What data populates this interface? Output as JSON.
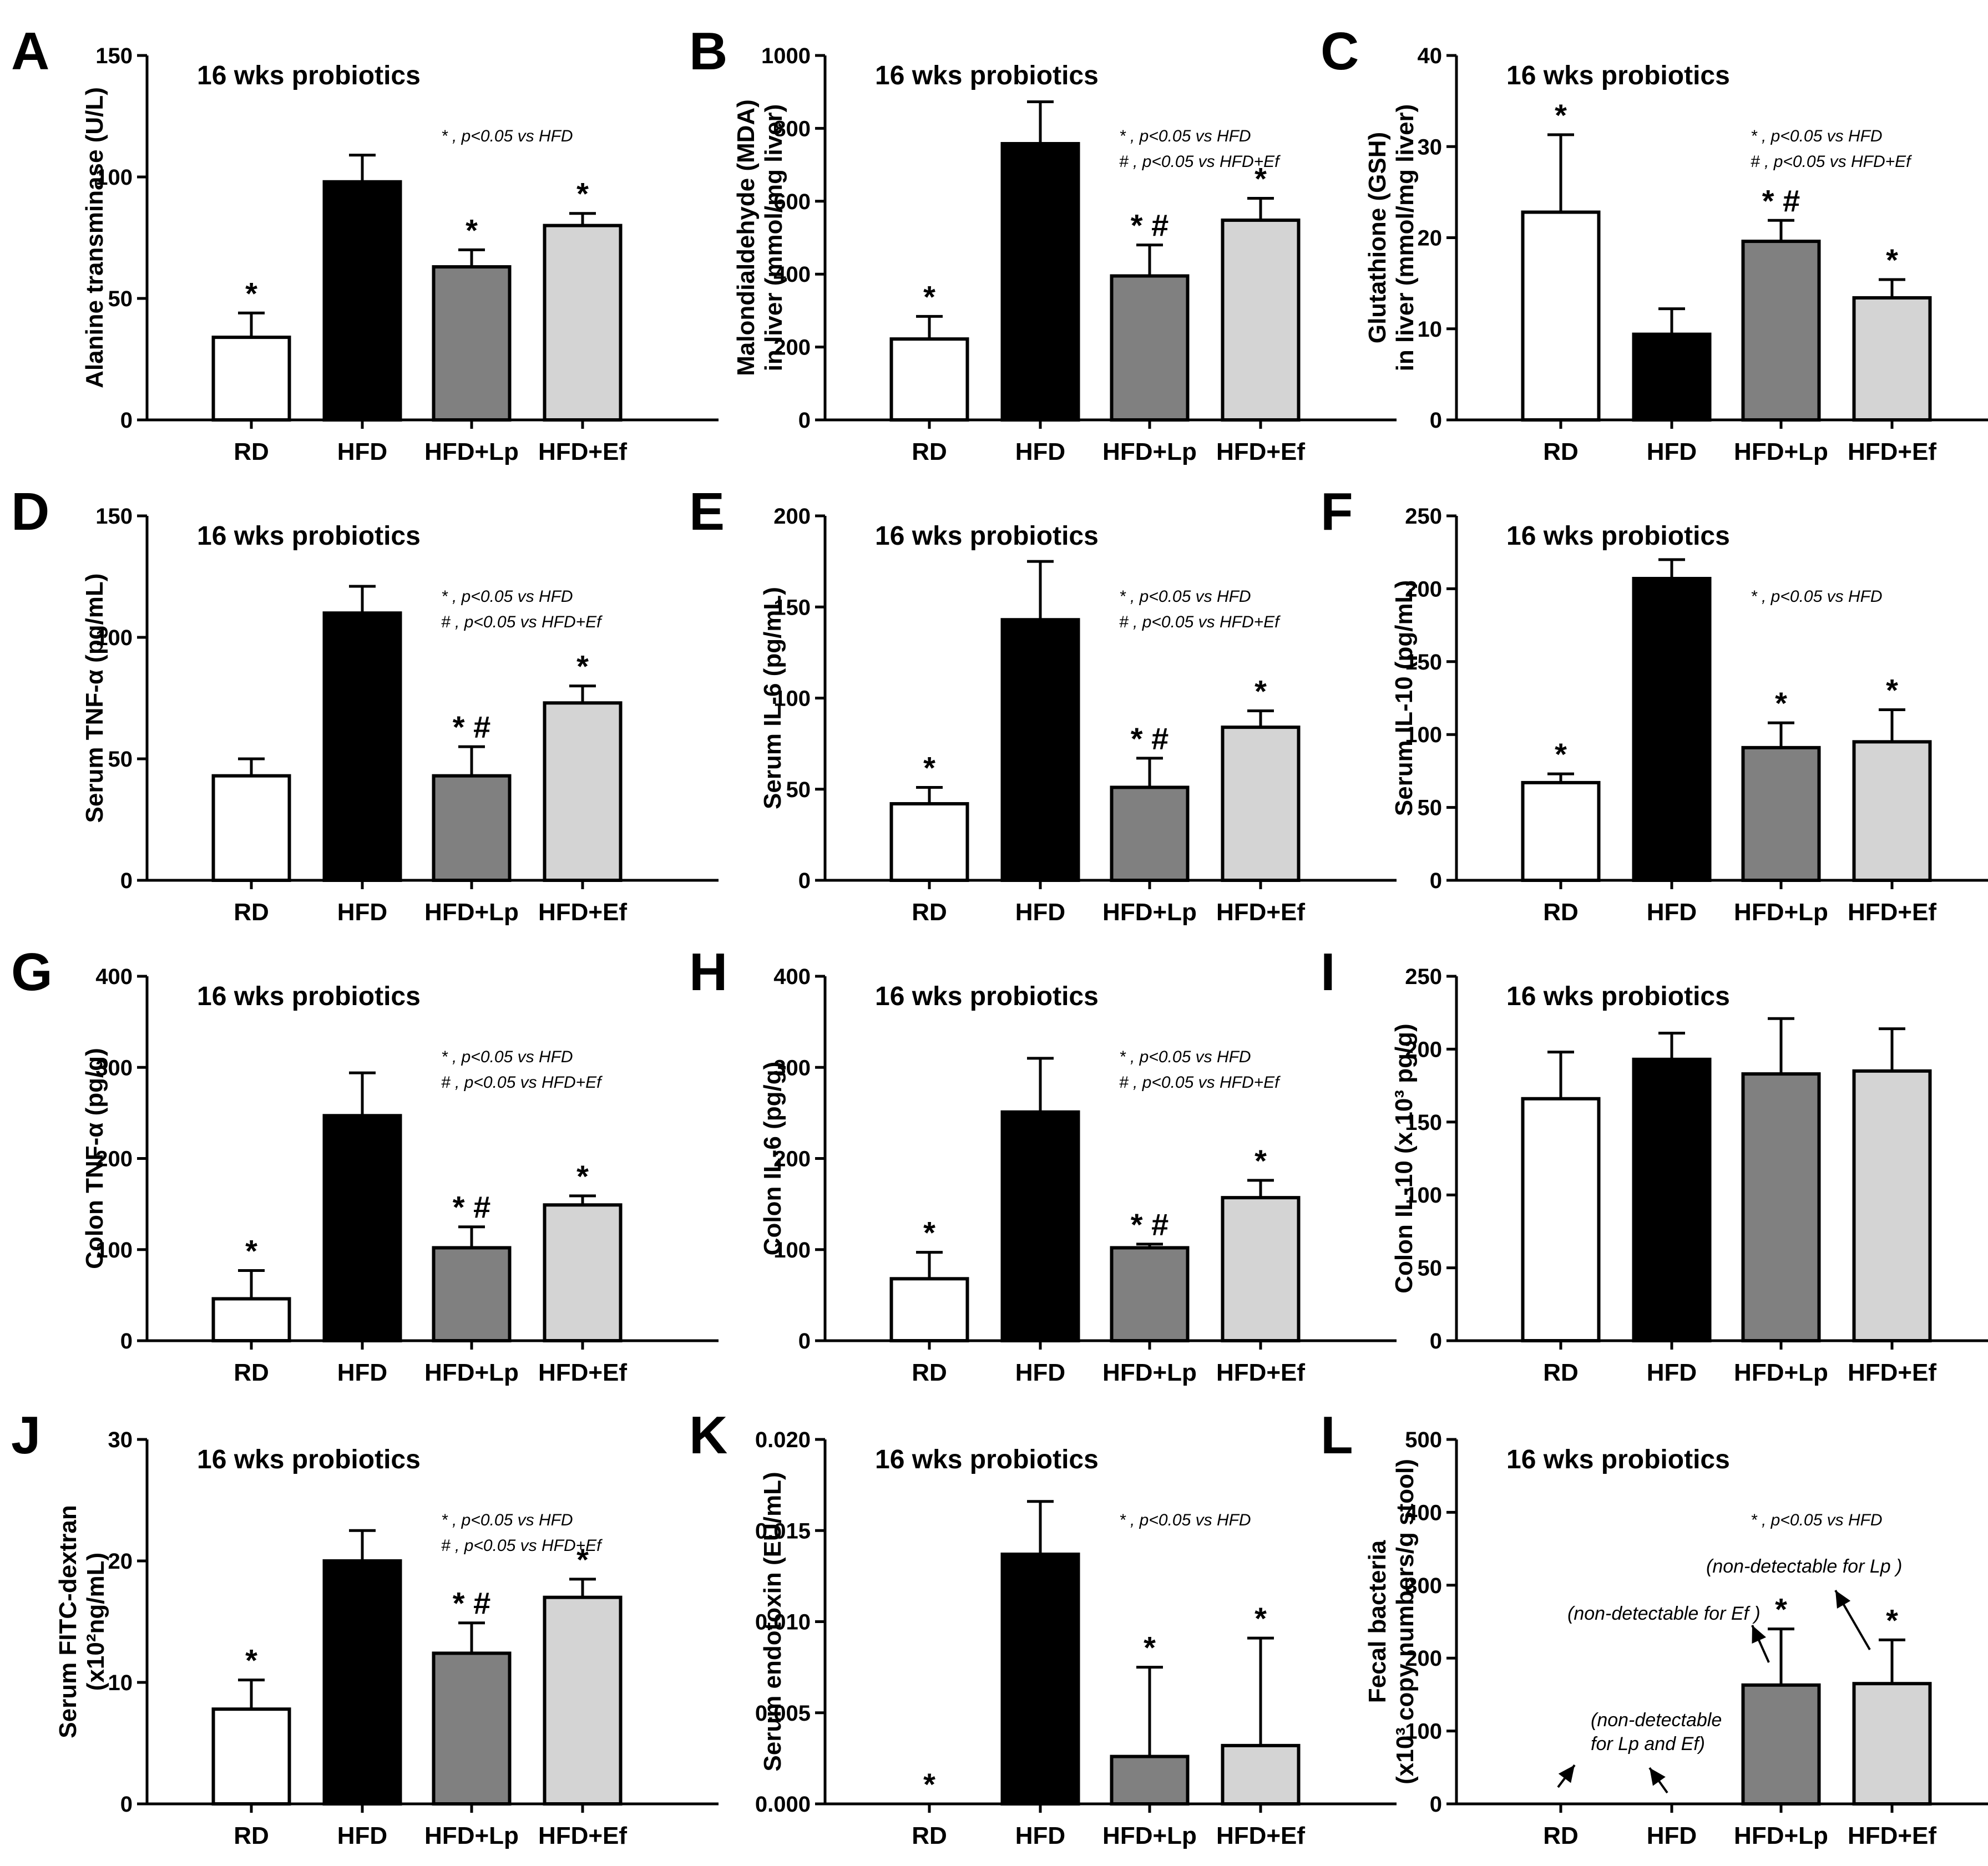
{
  "figure": {
    "description_title": "16 wks probiotics figure panels A-L"
  },
  "chart_data": [
    {
      "panel": "A",
      "type": "bar",
      "title": "16 wks probiotics",
      "ylabel_lines": [
        "Alanine transminase (U/L)"
      ],
      "categories": [
        "RD",
        "HFD",
        "HFD+Lp",
        "HFD+Ef"
      ],
      "values": [
        34,
        98,
        63,
        80
      ],
      "errors": [
        10,
        11,
        7,
        5
      ],
      "annotations": [
        "*",
        "",
        "*",
        "*"
      ],
      "ylim": [
        0,
        150
      ],
      "ticks": [
        0,
        50,
        100,
        150
      ],
      "tick_labels": [
        "0",
        "50",
        "100",
        "150"
      ],
      "legend": [
        "* , p<0.05 vs HFD"
      ]
    },
    {
      "panel": "B",
      "type": "bar",
      "title": "16 wks probiotics",
      "ylabel_lines": [
        "Malondialdehyde (MDA)",
        "in liver (mmol/mg liver)"
      ],
      "categories": [
        "RD",
        "HFD",
        "HFD+Lp",
        "HFD+Ef"
      ],
      "values": [
        222,
        758,
        395,
        548
      ],
      "errors": [
        62,
        115,
        85,
        60
      ],
      "annotations": [
        "*",
        "",
        "* #",
        "*"
      ],
      "ylim": [
        0,
        1000
      ],
      "ticks": [
        0,
        200,
        400,
        600,
        800,
        1000
      ],
      "tick_labels": [
        "0",
        "200",
        "400",
        "600",
        "800",
        "1000"
      ],
      "legend": [
        "* , p<0.05 vs HFD",
        "# , p<0.05 vs HFD+Ef"
      ]
    },
    {
      "panel": "C",
      "type": "bar",
      "title": "16 wks probiotics",
      "ylabel_lines": [
        "Glutathione (GSH)",
        "in liver (mmol/mg liver)"
      ],
      "categories": [
        "RD",
        "HFD",
        "HFD+Lp",
        "HFD+Ef"
      ],
      "values": [
        22.8,
        9.4,
        19.6,
        13.4
      ],
      "errors": [
        8.5,
        2.8,
        2.3,
        2.0
      ],
      "annotations": [
        "*",
        "",
        "* #",
        "*"
      ],
      "ylim": [
        0,
        40
      ],
      "ticks": [
        0,
        10,
        20,
        30,
        40
      ],
      "tick_labels": [
        "0",
        "10",
        "20",
        "30",
        "40"
      ],
      "legend": [
        "* , p<0.05 vs HFD",
        "# , p<0.05 vs HFD+Ef"
      ]
    },
    {
      "panel": "D",
      "type": "bar",
      "title": "16 wks probiotics",
      "ylabel_lines": [
        "Serum TNF-α (pg/mL)"
      ],
      "categories": [
        "RD",
        "HFD",
        "HFD+Lp",
        "HFD+Ef"
      ],
      "values": [
        43,
        110,
        43,
        73
      ],
      "errors": [
        7,
        11,
        12,
        7
      ],
      "annotations": [
        "",
        "",
        "* #",
        "*"
      ],
      "ylim": [
        0,
        150
      ],
      "ticks": [
        0,
        50,
        100,
        150
      ],
      "tick_labels": [
        "0",
        "50",
        "100",
        "150"
      ],
      "legend": [
        "* , p<0.05 vs HFD",
        "# , p<0.05 vs HFD+Ef"
      ]
    },
    {
      "panel": "E",
      "type": "bar",
      "title": "16 wks probiotics",
      "ylabel_lines": [
        "Serum IL-6 (pg/mL)"
      ],
      "categories": [
        "RD",
        "HFD",
        "HFD+Lp",
        "HFD+Ef"
      ],
      "values": [
        42,
        143,
        51,
        84
      ],
      "errors": [
        9,
        32,
        16,
        9
      ],
      "annotations": [
        "*",
        "",
        "* #",
        "*"
      ],
      "ylim": [
        0,
        200
      ],
      "ticks": [
        0,
        50,
        100,
        150,
        200
      ],
      "tick_labels": [
        "0",
        "50",
        "100",
        "150",
        "200"
      ],
      "legend": [
        "* , p<0.05 vs HFD",
        "# , p<0.05 vs HFD+Ef"
      ]
    },
    {
      "panel": "F",
      "type": "bar",
      "title": "16 wks probiotics",
      "ylabel_lines": [
        "Serum IL-10 (pg/mL)"
      ],
      "categories": [
        "RD",
        "HFD",
        "HFD+Lp",
        "HFD+Ef"
      ],
      "values": [
        67,
        207,
        91,
        95
      ],
      "errors": [
        6,
        13,
        17,
        22
      ],
      "annotations": [
        "*",
        "",
        "*",
        "*"
      ],
      "ylim": [
        0,
        250
      ],
      "ticks": [
        0,
        50,
        100,
        150,
        200,
        250
      ],
      "tick_labels": [
        "0",
        "50",
        "100",
        "150",
        "200",
        "250"
      ],
      "legend": [
        "* , p<0.05 vs HFD"
      ]
    },
    {
      "panel": "G",
      "type": "bar",
      "title": "16 wks probiotics",
      "ylabel_lines": [
        "Colon TNF-α (pg/g)"
      ],
      "categories": [
        "RD",
        "HFD",
        "HFD+Lp",
        "HFD+Ef"
      ],
      "values": [
        46,
        247,
        102,
        149
      ],
      "errors": [
        31,
        47,
        23,
        10
      ],
      "annotations": [
        "*",
        "",
        "* #",
        "*"
      ],
      "ylim": [
        0,
        400
      ],
      "ticks": [
        0,
        100,
        200,
        300,
        400
      ],
      "tick_labels": [
        "0",
        "100",
        "200",
        "300",
        "400"
      ],
      "legend": [
        "* , p<0.05 vs HFD",
        "# , p<0.05 vs HFD+Ef"
      ]
    },
    {
      "panel": "H",
      "type": "bar",
      "title": "16 wks probiotics",
      "ylabel_lines": [
        "Colon IL-6 (pg/g)"
      ],
      "categories": [
        "RD",
        "HFD",
        "HFD+Lp",
        "HFD+Ef"
      ],
      "values": [
        68,
        251,
        102,
        157
      ],
      "errors": [
        29,
        59,
        4,
        19
      ],
      "annotations": [
        "*",
        "",
        "* #",
        "*"
      ],
      "ylim": [
        0,
        400
      ],
      "ticks": [
        0,
        100,
        200,
        300,
        400
      ],
      "tick_labels": [
        "0",
        "100",
        "200",
        "300",
        "400"
      ],
      "legend": [
        "* , p<0.05 vs HFD",
        "# , p<0.05 vs HFD+Ef"
      ]
    },
    {
      "panel": "I",
      "type": "bar",
      "title": "16 wks probiotics",
      "ylabel_lines": [
        "Colon IL-10 (x 10³ pg/g)"
      ],
      "categories": [
        "RD",
        "HFD",
        "HFD+Lp",
        "HFD+Ef"
      ],
      "values": [
        166,
        193,
        183,
        185
      ],
      "errors": [
        32,
        18,
        38,
        29
      ],
      "annotations": [
        "",
        "",
        "",
        ""
      ],
      "ylim": [
        0,
        250
      ],
      "ticks": [
        0,
        50,
        100,
        150,
        200,
        250
      ],
      "tick_labels": [
        "0",
        "50",
        "100",
        "150",
        "200",
        "250"
      ],
      "legend": []
    },
    {
      "panel": "J",
      "type": "bar",
      "title": "16 wks probiotics",
      "ylabel_lines": [
        "Serum FITC-dextran",
        "(x10²ng/mL)"
      ],
      "categories": [
        "RD",
        "HFD",
        "HFD+Lp",
        "HFD+Ef"
      ],
      "values": [
        7.8,
        20.0,
        12.4,
        17.0
      ],
      "errors": [
        2.4,
        2.5,
        2.5,
        1.5
      ],
      "annotations": [
        "*",
        "",
        "* #",
        "*"
      ],
      "ylim": [
        0,
        30
      ],
      "ticks": [
        0,
        10,
        20,
        30
      ],
      "tick_labels": [
        "0",
        "10",
        "20",
        "30"
      ],
      "legend": [
        "* , p<0.05 vs HFD",
        "# , p<0.05 vs HFD+Ef"
      ]
    },
    {
      "panel": "K",
      "type": "bar",
      "title": "16 wks probiotics",
      "ylabel_lines": [
        "Serum endotoxin (EU/mL)"
      ],
      "categories": [
        "RD",
        "HFD",
        "HFD+Lp",
        "HFD+Ef"
      ],
      "values": [
        0,
        0.0137,
        0.0026,
        0.0032
      ],
      "errors": [
        0,
        0.0029,
        0.0049,
        0.0059
      ],
      "annotations": [
        "*",
        "",
        "*",
        "*"
      ],
      "ylim": [
        0,
        0.02
      ],
      "ticks": [
        0,
        0.005,
        0.01,
        0.015,
        0.02
      ],
      "tick_labels": [
        "0.000",
        "0.005",
        "0.010",
        "0.015",
        "0.020"
      ],
      "legend": [
        "* , p<0.05 vs HFD"
      ]
    },
    {
      "panel": "L",
      "type": "bar",
      "title": "16 wks probiotics",
      "ylabel_lines": [
        "Fecal bacteria",
        "(x10³ copy numbers/g stool)"
      ],
      "categories": [
        "RD",
        "HFD",
        "HFD+Lp",
        "HFD+Ef"
      ],
      "values": [
        0,
        0,
        163,
        165
      ],
      "errors": [
        0,
        0,
        77,
        60
      ],
      "annotations": [
        "",
        "",
        "*",
        "*"
      ],
      "ylim": [
        0,
        500
      ],
      "ticks": [
        0,
        100,
        200,
        300,
        400,
        500
      ],
      "tick_labels": [
        "0",
        "100",
        "200",
        "300",
        "400",
        "500"
      ],
      "legend": [
        "* , p<0.05 vs HFD"
      ],
      "notes": [
        "(non-detectable for Lp )",
        "(non-detectable for Ef )",
        "(non-detectable",
        "for Lp and Ef)"
      ]
    }
  ],
  "colors": {
    "RD": "#ffffff",
    "HFD": "#000000",
    "HFD+Lp": "#808080",
    "HFD+Ef": "#d4d4d4"
  }
}
